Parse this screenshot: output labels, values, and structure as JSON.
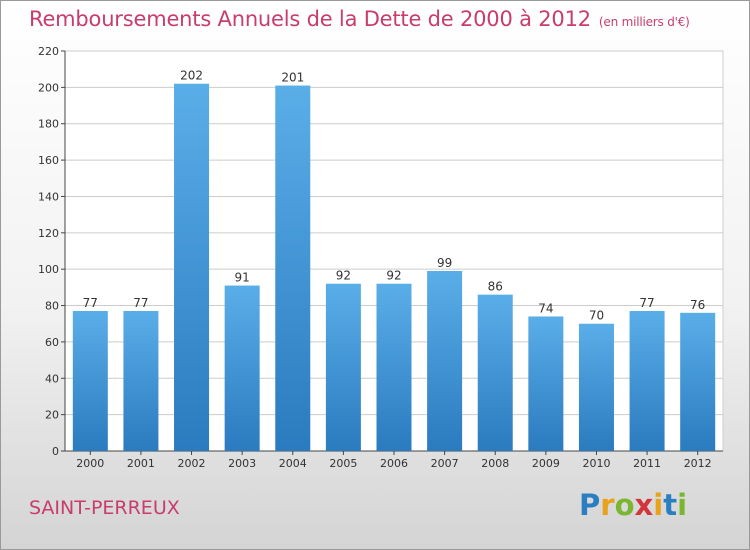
{
  "title": "Remboursements Annuels de la Dette de 2000 à 2012",
  "title_unit": "(en milliers d'€)",
  "city": "SAINT-PERREUX",
  "logo": {
    "letters": [
      "P",
      "r",
      "o",
      "x",
      "i",
      "t",
      "i"
    ],
    "colors": [
      "#2b7fc1",
      "#e8a21c",
      "#7cb532",
      "#d2353c",
      "#e8a21c",
      "#2b7fc1",
      "#7cb532"
    ]
  },
  "colors": {
    "title": "#c83c6e",
    "bar_light": "#5aaee8",
    "bar_dark": "#2a7bbf",
    "grid": "#cccccc"
  },
  "chart_data": {
    "type": "bar",
    "categories": [
      "2000",
      "2001",
      "2002",
      "2003",
      "2004",
      "2005",
      "2006",
      "2007",
      "2008",
      "2009",
      "2010",
      "2011",
      "2012"
    ],
    "values": [
      77,
      77,
      202,
      91,
      201,
      92,
      92,
      99,
      86,
      74,
      70,
      77,
      76
    ],
    "ylim": [
      0,
      220
    ],
    "yticks": [
      0,
      20,
      40,
      60,
      80,
      100,
      120,
      140,
      160,
      180,
      200,
      220
    ],
    "grid": true,
    "data_labels": true
  }
}
